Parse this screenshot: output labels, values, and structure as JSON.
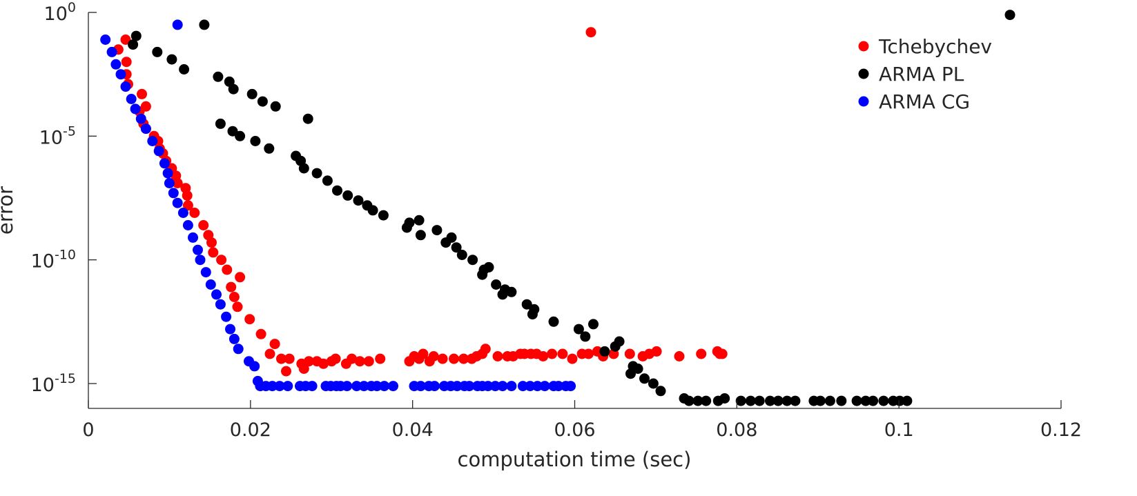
{
  "chart_data": {
    "type": "scatter",
    "xlabel": "computation time (sec)",
    "ylabel": "error",
    "xlim": [
      0,
      0.12
    ],
    "ylim_log10": [
      -16,
      0
    ],
    "y_scale": "log",
    "x_ticks": [
      {
        "value": 0,
        "label": "0"
      },
      {
        "value": 0.02,
        "label": "0.02"
      },
      {
        "value": 0.04,
        "label": "0.04"
      },
      {
        "value": 0.06,
        "label": "0.06"
      },
      {
        "value": 0.08,
        "label": "0.08"
      },
      {
        "value": 0.1,
        "label": "0.1"
      },
      {
        "value": 0.12,
        "label": "0.12"
      }
    ],
    "y_ticks": [
      {
        "exp": 0,
        "base": "10",
        "sup": "0"
      },
      {
        "exp": -5,
        "base": "10",
        "sup": "-5"
      },
      {
        "exp": -10,
        "base": "10",
        "sup": "-10"
      },
      {
        "exp": -15,
        "base": "10",
        "sup": "-15"
      }
    ],
    "grid": false,
    "legend_position": "top-right",
    "series": [
      {
        "name": "Tchebychev",
        "color": "#ff0000",
        "points": [
          [
            0.0037,
            -1.5
          ],
          [
            0.0046,
            -1.1
          ],
          [
            0.0047,
            -2.0
          ],
          [
            0.0047,
            -2.5
          ],
          [
            0.0049,
            -2.9
          ],
          [
            0.0066,
            -3.3
          ],
          [
            0.0071,
            -3.8
          ],
          [
            0.0063,
            -4.0
          ],
          [
            0.0068,
            -4.5
          ],
          [
            0.0071,
            -4.7
          ],
          [
            0.0081,
            -5.0
          ],
          [
            0.0086,
            -5.2
          ],
          [
            0.0088,
            -5.5
          ],
          [
            0.0092,
            -5.7
          ],
          [
            0.0096,
            -6.0
          ],
          [
            0.0103,
            -6.3
          ],
          [
            0.0108,
            -6.6
          ],
          [
            0.011,
            -6.9
          ],
          [
            0.012,
            -7.1
          ],
          [
            0.0122,
            -7.4
          ],
          [
            0.0123,
            -7.8
          ],
          [
            0.0131,
            -8.1
          ],
          [
            0.0142,
            -8.6
          ],
          [
            0.0148,
            -9.0
          ],
          [
            0.0152,
            -9.3
          ],
          [
            0.0154,
            -9.7
          ],
          [
            0.0164,
            -10.0
          ],
          [
            0.0171,
            -10.4
          ],
          [
            0.0176,
            -11.1
          ],
          [
            0.018,
            -11.5
          ],
          [
            0.0187,
            -10.7
          ],
          [
            0.0184,
            -11.9
          ],
          [
            0.0199,
            -12.4
          ],
          [
            0.0213,
            -13.0
          ],
          [
            0.0224,
            -13.8
          ],
          [
            0.023,
            -13.4
          ],
          [
            0.0238,
            -14.0
          ],
          [
            0.0244,
            -14.5
          ],
          [
            0.0248,
            -14.0
          ],
          [
            0.0263,
            -14.2
          ],
          [
            0.0266,
            -14.4
          ],
          [
            0.0272,
            -14.1
          ],
          [
            0.0282,
            -14.1
          ],
          [
            0.029,
            -14.2
          ],
          [
            0.03,
            -14.1
          ],
          [
            0.0305,
            -14.0
          ],
          [
            0.0318,
            -14.2
          ],
          [
            0.0325,
            -14.0
          ],
          [
            0.0335,
            -14.1
          ],
          [
            0.0346,
            -14.1
          ],
          [
            0.036,
            -14.0
          ],
          [
            0.0396,
            -14.1
          ],
          [
            0.0402,
            -13.9
          ],
          [
            0.0408,
            -14.0
          ],
          [
            0.0413,
            -13.8
          ],
          [
            0.0421,
            -14.1
          ],
          [
            0.0426,
            -13.9
          ],
          [
            0.0437,
            -14.0
          ],
          [
            0.0451,
            -14.0
          ],
          [
            0.0463,
            -14.0
          ],
          [
            0.0473,
            -14.0
          ],
          [
            0.0479,
            -13.9
          ],
          [
            0.0486,
            -13.8
          ],
          [
            0.049,
            -13.6
          ],
          [
            0.0505,
            -13.9
          ],
          [
            0.0517,
            -13.9
          ],
          [
            0.0524,
            -13.9
          ],
          [
            0.0533,
            -13.8
          ],
          [
            0.0538,
            -13.8
          ],
          [
            0.0546,
            -13.8
          ],
          [
            0.0553,
            -13.8
          ],
          [
            0.0561,
            -13.9
          ],
          [
            0.0572,
            -13.8
          ],
          [
            0.0585,
            -13.8
          ],
          [
            0.0597,
            -14.0
          ],
          [
            0.0609,
            -13.8
          ],
          [
            0.0617,
            -13.8
          ],
          [
            0.062,
            -0.8
          ],
          [
            0.0628,
            -13.7
          ],
          [
            0.0635,
            -13.9
          ],
          [
            0.0648,
            -13.8
          ],
          [
            0.0668,
            -13.8
          ],
          [
            0.0684,
            -13.9
          ],
          [
            0.0692,
            -13.8
          ],
          [
            0.0701,
            -13.7
          ],
          [
            0.0729,
            -13.9
          ],
          [
            0.0756,
            -13.8
          ],
          [
            0.0776,
            -13.7
          ],
          [
            0.0779,
            -13.8
          ],
          [
            0.0782,
            -13.8
          ]
        ]
      },
      {
        "name": "ARMA PL",
        "color": "#000000",
        "points": [
          [
            0.0055,
            -1.3
          ],
          [
            0.0059,
            -0.95
          ],
          [
            0.0085,
            -1.6
          ],
          [
            0.0103,
            -1.9
          ],
          [
            0.0118,
            -2.3
          ],
          [
            0.0143,
            -0.5
          ],
          [
            0.016,
            -2.6
          ],
          [
            0.0163,
            -4.5
          ],
          [
            0.0174,
            -2.8
          ],
          [
            0.0179,
            -3.1
          ],
          [
            0.0178,
            -4.8
          ],
          [
            0.0187,
            -5.0
          ],
          [
            0.0202,
            -3.3
          ],
          [
            0.0206,
            -5.2
          ],
          [
            0.0215,
            -3.6
          ],
          [
            0.0223,
            -5.5
          ],
          [
            0.0231,
            -3.8
          ],
          [
            0.0256,
            -5.8
          ],
          [
            0.0262,
            -6.0
          ],
          [
            0.0266,
            -6.3
          ],
          [
            0.0271,
            -4.3
          ],
          [
            0.0282,
            -6.5
          ],
          [
            0.0295,
            -6.8
          ],
          [
            0.0307,
            -7.2
          ],
          [
            0.032,
            -7.4
          ],
          [
            0.0333,
            -7.6
          ],
          [
            0.0344,
            -7.8
          ],
          [
            0.0351,
            -8.0
          ],
          [
            0.0364,
            -8.2
          ],
          [
            0.0393,
            -8.7
          ],
          [
            0.0396,
            -8.5
          ],
          [
            0.0408,
            -8.4
          ],
          [
            0.041,
            -9.0
          ],
          [
            0.043,
            -8.8
          ],
          [
            0.0441,
            -9.3
          ],
          [
            0.0448,
            -9.1
          ],
          [
            0.0454,
            -9.5
          ],
          [
            0.0461,
            -9.8
          ],
          [
            0.0474,
            -10.0
          ],
          [
            0.0486,
            -10.6
          ],
          [
            0.0488,
            -10.4
          ],
          [
            0.0494,
            -10.3
          ],
          [
            0.0503,
            -11.0
          ],
          [
            0.0511,
            -11.4
          ],
          [
            0.0514,
            -11.2
          ],
          [
            0.0522,
            -11.3
          ],
          [
            0.0541,
            -11.8
          ],
          [
            0.0548,
            -12.2
          ],
          [
            0.055,
            -12.0
          ],
          [
            0.0574,
            -12.5
          ],
          [
            0.0605,
            -12.8
          ],
          [
            0.0613,
            -13.1
          ],
          [
            0.0623,
            -12.6
          ],
          [
            0.0637,
            -13.7
          ],
          [
            0.065,
            -13.5
          ],
          [
            0.0655,
            -13.3
          ],
          [
            0.0669,
            -14.6
          ],
          [
            0.0672,
            -14.3
          ],
          [
            0.0678,
            -14.4
          ],
          [
            0.0686,
            -14.8
          ],
          [
            0.0697,
            -15.0
          ],
          [
            0.0706,
            -15.3
          ],
          [
            0.0735,
            -15.6
          ],
          [
            0.0741,
            -15.7
          ],
          [
            0.0752,
            -15.7
          ],
          [
            0.0762,
            -15.7
          ],
          [
            0.0777,
            -15.7
          ],
          [
            0.0785,
            -15.6
          ],
          [
            0.0805,
            -15.7
          ],
          [
            0.0817,
            -15.7
          ],
          [
            0.0828,
            -15.7
          ],
          [
            0.0841,
            -15.7
          ],
          [
            0.0851,
            -15.7
          ],
          [
            0.0862,
            -15.7
          ],
          [
            0.0872,
            -15.7
          ],
          [
            0.0895,
            -15.7
          ],
          [
            0.0903,
            -15.7
          ],
          [
            0.0915,
            -15.7
          ],
          [
            0.0929,
            -15.7
          ],
          [
            0.0948,
            -15.7
          ],
          [
            0.0959,
            -15.7
          ],
          [
            0.0968,
            -15.7
          ],
          [
            0.0981,
            -15.7
          ],
          [
            0.0993,
            -15.7
          ],
          [
            0.1001,
            -15.7
          ],
          [
            0.101,
            -15.7
          ],
          [
            0.1137,
            -0.1
          ]
        ]
      },
      {
        "name": "ARMA CG",
        "color": "#0000ff",
        "points": [
          [
            0.0021,
            -1.1
          ],
          [
            0.0029,
            -1.6
          ],
          [
            0.0034,
            -2.1
          ],
          [
            0.004,
            -2.5
          ],
          [
            0.0046,
            -3.0
          ],
          [
            0.0053,
            -3.5
          ],
          [
            0.0058,
            -3.9
          ],
          [
            0.0065,
            -4.3
          ],
          [
            0.0071,
            -4.7
          ],
          [
            0.0079,
            -5.2
          ],
          [
            0.0087,
            -5.6
          ],
          [
            0.0094,
            -6.1
          ],
          [
            0.0098,
            -6.5
          ],
          [
            0.01,
            -6.9
          ],
          [
            0.0105,
            -7.3
          ],
          [
            0.011,
            -0.5
          ],
          [
            0.011,
            -7.7
          ],
          [
            0.0117,
            -8.1
          ],
          [
            0.0123,
            -8.6
          ],
          [
            0.0129,
            -9.1
          ],
          [
            0.0135,
            -9.6
          ],
          [
            0.0138,
            -10.0
          ],
          [
            0.0145,
            -10.5
          ],
          [
            0.0151,
            -11.0
          ],
          [
            0.0158,
            -11.4
          ],
          [
            0.0163,
            -11.8
          ],
          [
            0.017,
            -12.3
          ],
          [
            0.0175,
            -12.8
          ],
          [
            0.018,
            -13.2
          ],
          [
            0.0185,
            -13.6
          ],
          [
            0.0198,
            -14.1
          ],
          [
            0.0205,
            -14.3
          ],
          [
            0.0209,
            -14.9
          ],
          [
            0.0212,
            -15.1
          ],
          [
            0.0219,
            -15.1
          ],
          [
            0.0227,
            -15.1
          ],
          [
            0.0236,
            -15.1
          ],
          [
            0.0246,
            -15.1
          ],
          [
            0.0261,
            -15.1
          ],
          [
            0.0268,
            -15.1
          ],
          [
            0.0276,
            -15.1
          ],
          [
            0.0293,
            -15.1
          ],
          [
            0.0299,
            -15.1
          ],
          [
            0.0306,
            -15.1
          ],
          [
            0.0311,
            -15.1
          ],
          [
            0.0319,
            -15.1
          ],
          [
            0.0331,
            -15.1
          ],
          [
            0.034,
            -15.1
          ],
          [
            0.0349,
            -15.1
          ],
          [
            0.0356,
            -15.1
          ],
          [
            0.0365,
            -15.1
          ],
          [
            0.0376,
            -15.1
          ],
          [
            0.0402,
            -15.1
          ],
          [
            0.041,
            -15.1
          ],
          [
            0.042,
            -15.1
          ],
          [
            0.0427,
            -15.1
          ],
          [
            0.0439,
            -15.1
          ],
          [
            0.0447,
            -15.1
          ],
          [
            0.0455,
            -15.1
          ],
          [
            0.0464,
            -15.1
          ],
          [
            0.047,
            -15.1
          ],
          [
            0.048,
            -15.1
          ],
          [
            0.0486,
            -15.1
          ],
          [
            0.0493,
            -15.1
          ],
          [
            0.0502,
            -15.1
          ],
          [
            0.0511,
            -15.1
          ],
          [
            0.0522,
            -15.1
          ],
          [
            0.0536,
            -15.1
          ],
          [
            0.0545,
            -15.1
          ],
          [
            0.0554,
            -15.1
          ],
          [
            0.0563,
            -15.1
          ],
          [
            0.0574,
            -15.1
          ],
          [
            0.058,
            -15.1
          ],
          [
            0.0589,
            -15.1
          ],
          [
            0.0595,
            -15.1
          ]
        ]
      }
    ]
  }
}
